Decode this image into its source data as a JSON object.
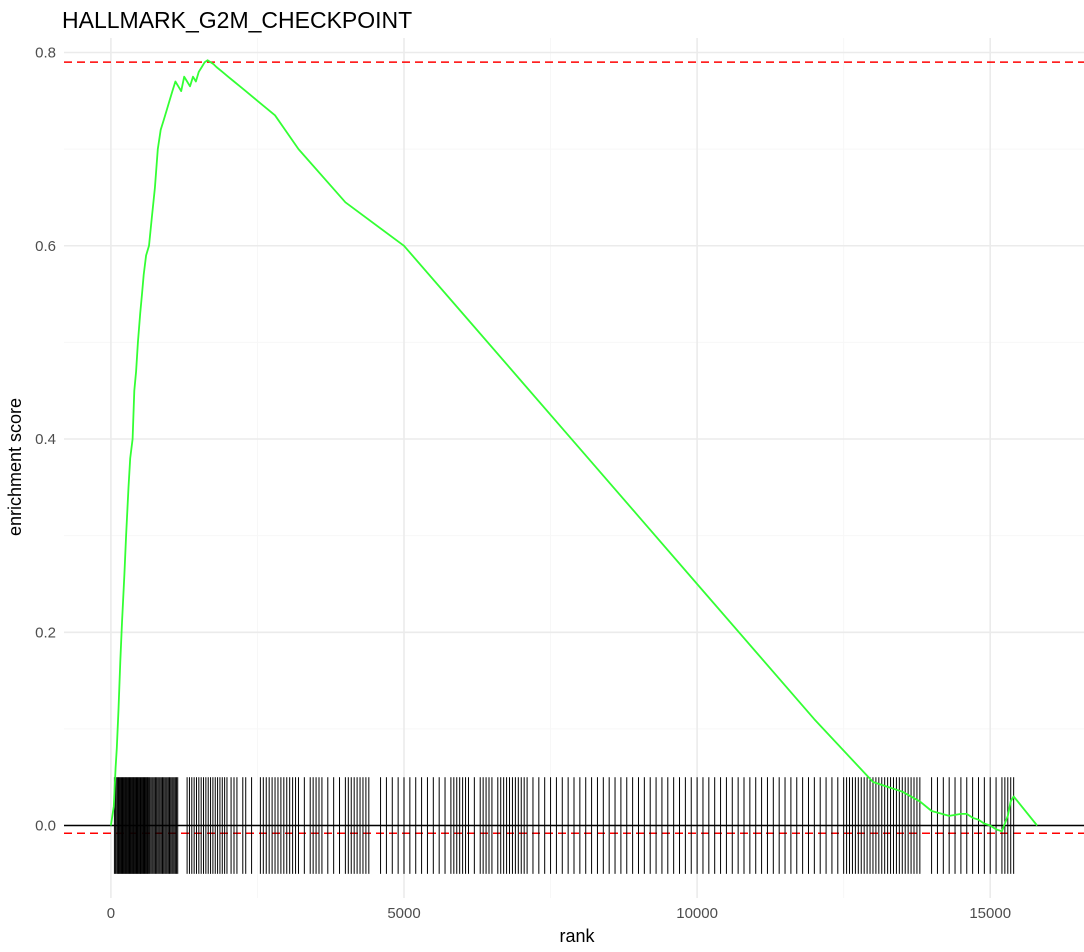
{
  "chart_data": {
    "type": "line",
    "title": "HALLMARK_G2M_CHECKPOINT",
    "xlabel": "rank",
    "ylabel": "enrichment score",
    "xlim": [
      -800,
      16600
    ],
    "ylim": [
      -0.075,
      0.815
    ],
    "x_ticks": [
      0,
      5000,
      10000,
      15000
    ],
    "x_tick_labels": [
      "0",
      "5000",
      "10000",
      "15000"
    ],
    "y_ticks": [
      0.0,
      0.2,
      0.4,
      0.6,
      0.8
    ],
    "y_tick_labels": [
      "0.0",
      "0.2",
      "0.4",
      "0.6",
      "0.8"
    ],
    "grid": true,
    "series": [
      {
        "color": "#33ff33",
        "x": [
          0,
          50,
          80,
          100,
          130,
          160,
          190,
          230,
          260,
          300,
          330,
          370,
          400,
          430,
          460,
          500,
          530,
          560,
          600,
          650,
          700,
          750,
          800,
          850,
          900,
          950,
          1000,
          1050,
          1100,
          1150,
          1200,
          1250,
          1300,
          1350,
          1400,
          1450,
          1500,
          1550,
          1600,
          1650,
          1700,
          1750,
          1800,
          1900,
          2000,
          2100,
          2200,
          2300,
          2500,
          2800,
          3200,
          4000,
          5000,
          6000,
          7000,
          8000,
          9000,
          10000,
          11000,
          12000,
          13000,
          13500,
          13800,
          14000,
          14300,
          14500,
          14600,
          14700,
          14800,
          14900,
          15000,
          15100,
          15200,
          15300,
          15350,
          15400,
          15800
        ],
        "y": [
          0.0,
          0.02,
          0.06,
          0.08,
          0.12,
          0.17,
          0.21,
          0.26,
          0.3,
          0.35,
          0.38,
          0.4,
          0.45,
          0.47,
          0.5,
          0.53,
          0.55,
          0.57,
          0.59,
          0.6,
          0.63,
          0.66,
          0.7,
          0.72,
          0.73,
          0.74,
          0.75,
          0.76,
          0.77,
          0.765,
          0.76,
          0.775,
          0.77,
          0.765,
          0.775,
          0.77,
          0.78,
          0.785,
          0.79,
          0.792,
          0.79,
          0.788,
          0.785,
          0.78,
          0.775,
          0.77,
          0.765,
          0.76,
          0.75,
          0.735,
          0.7,
          0.645,
          0.6,
          0.53,
          0.46,
          0.39,
          0.32,
          0.25,
          0.18,
          0.11,
          0.045,
          0.035,
          0.025,
          0.015,
          0.01,
          0.012,
          0.012,
          0.008,
          0.006,
          0.002,
          0.0,
          -0.004,
          -0.006,
          0.01,
          0.025,
          0.03,
          0.0
        ]
      }
    ],
    "reference_lines": [
      {
        "orientation": "horizontal",
        "y": 0.79,
        "color": "#ff0000",
        "style": "dashed"
      },
      {
        "orientation": "horizontal",
        "y": -0.008,
        "color": "#ff0000",
        "style": "dashed"
      },
      {
        "orientation": "horizontal",
        "y": 0.0,
        "color": "#000000",
        "style": "solid"
      }
    ],
    "rug": {
      "y_range": [
        -0.05,
        0.05
      ],
      "color": "#000000",
      "positions": [
        60,
        80,
        100,
        115,
        130,
        145,
        160,
        175,
        190,
        205,
        220,
        235,
        250,
        265,
        280,
        295,
        310,
        325,
        340,
        355,
        370,
        385,
        400,
        415,
        430,
        445,
        460,
        475,
        490,
        505,
        520,
        535,
        550,
        565,
        580,
        595,
        610,
        625,
        640,
        660,
        680,
        700,
        720,
        740,
        760,
        780,
        800,
        820,
        840,
        860,
        880,
        900,
        920,
        940,
        960,
        980,
        1000,
        1020,
        1040,
        1060,
        1080,
        1100,
        1120,
        1140,
        1300,
        1340,
        1380,
        1420,
        1460,
        1500,
        1540,
        1580,
        1620,
        1660,
        1700,
        1740,
        1780,
        1820,
        1860,
        1900,
        1940,
        1980,
        2050,
        2100,
        2150,
        2250,
        2300,
        2400,
        2550,
        2600,
        2650,
        2700,
        2750,
        2800,
        2850,
        2900,
        2950,
        3000,
        3050,
        3100,
        3150,
        3200,
        3300,
        3400,
        3450,
        3500,
        3550,
        3600,
        3700,
        3800,
        3900,
        4000,
        4050,
        4100,
        4150,
        4200,
        4250,
        4300,
        4350,
        4400,
        4600,
        4700,
        4800,
        4900,
        5000,
        5100,
        5200,
        5300,
        5400,
        5500,
        5600,
        5700,
        5800,
        5850,
        5900,
        5950,
        6000,
        6050,
        6100,
        6200,
        6300,
        6350,
        6400,
        6450,
        6500,
        6600,
        6650,
        6700,
        6750,
        6800,
        6850,
        6900,
        6950,
        7000,
        7050,
        7100,
        7200,
        7300,
        7400,
        7500,
        7600,
        7700,
        7800,
        7900,
        8000,
        8100,
        8200,
        8300,
        8400,
        8500,
        8600,
        8700,
        8800,
        8900,
        9000,
        9100,
        9200,
        9300,
        9400,
        9500,
        9600,
        9700,
        9800,
        9900,
        10000,
        10100,
        10200,
        10300,
        10400,
        10500,
        10600,
        10700,
        10800,
        10900,
        11000,
        11100,
        11200,
        11300,
        11400,
        11500,
        11600,
        11700,
        11800,
        11900,
        12000,
        12100,
        12200,
        12300,
        12400,
        12500,
        12550,
        12600,
        12650,
        12700,
        12750,
        12800,
        12850,
        12900,
        12950,
        13000,
        13050,
        13100,
        13150,
        13200,
        13250,
        13300,
        13350,
        13400,
        13450,
        13500,
        13550,
        13600,
        13650,
        13700,
        13750,
        13800,
        14000,
        14100,
        14200,
        14300,
        14400,
        14500,
        14600,
        14700,
        14800,
        14900,
        15000,
        15100,
        15200,
        15250,
        15300,
        15350,
        15400
      ]
    }
  }
}
